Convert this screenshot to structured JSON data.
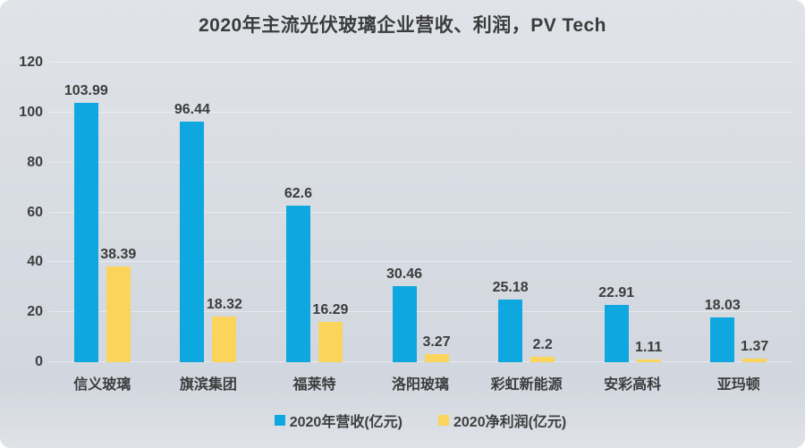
{
  "title": "2020年主流光伏玻璃企业营收、利润，PV Tech",
  "colors": {
    "revenue_bar": "#0fa7e0",
    "profit_bar": "#fbd45c",
    "background": "#d8dce3",
    "gridline": "#e6e9ed",
    "text": "#3c3c3c"
  },
  "chart_data": {
    "type": "bar",
    "title": "2020年主流光伏玻璃企业营收、利润，PV Tech",
    "categories": [
      "信义玻璃",
      "旗滨集团",
      "福莱特",
      "洛阳玻璃",
      "彩虹新能源",
      "安彩高科",
      "亚玛顿"
    ],
    "series": [
      {
        "name": "2020年营收(亿元)",
        "color": "#0fa7e0",
        "values": [
          103.99,
          96.44,
          62.6,
          30.46,
          25.18,
          22.91,
          18.03
        ],
        "labels": [
          "103.99",
          "96.44",
          "62.6",
          "30.46",
          "25.18",
          "22.91",
          "18.03"
        ]
      },
      {
        "name": "2020净利润(亿元)",
        "color": "#fbd45c",
        "values": [
          38.39,
          18.32,
          16.29,
          3.27,
          2.2,
          1.11,
          1.37
        ],
        "labels": [
          "38.39",
          "18.32",
          "16.29",
          "3.27",
          "2.2",
          "1.11",
          "1.37"
        ]
      }
    ],
    "xlabel": "",
    "ylabel": "",
    "ylim": [
      0,
      120
    ],
    "yticks": [
      0,
      20,
      40,
      60,
      80,
      100,
      120
    ],
    "grid": true,
    "legend_position": "bottom"
  }
}
